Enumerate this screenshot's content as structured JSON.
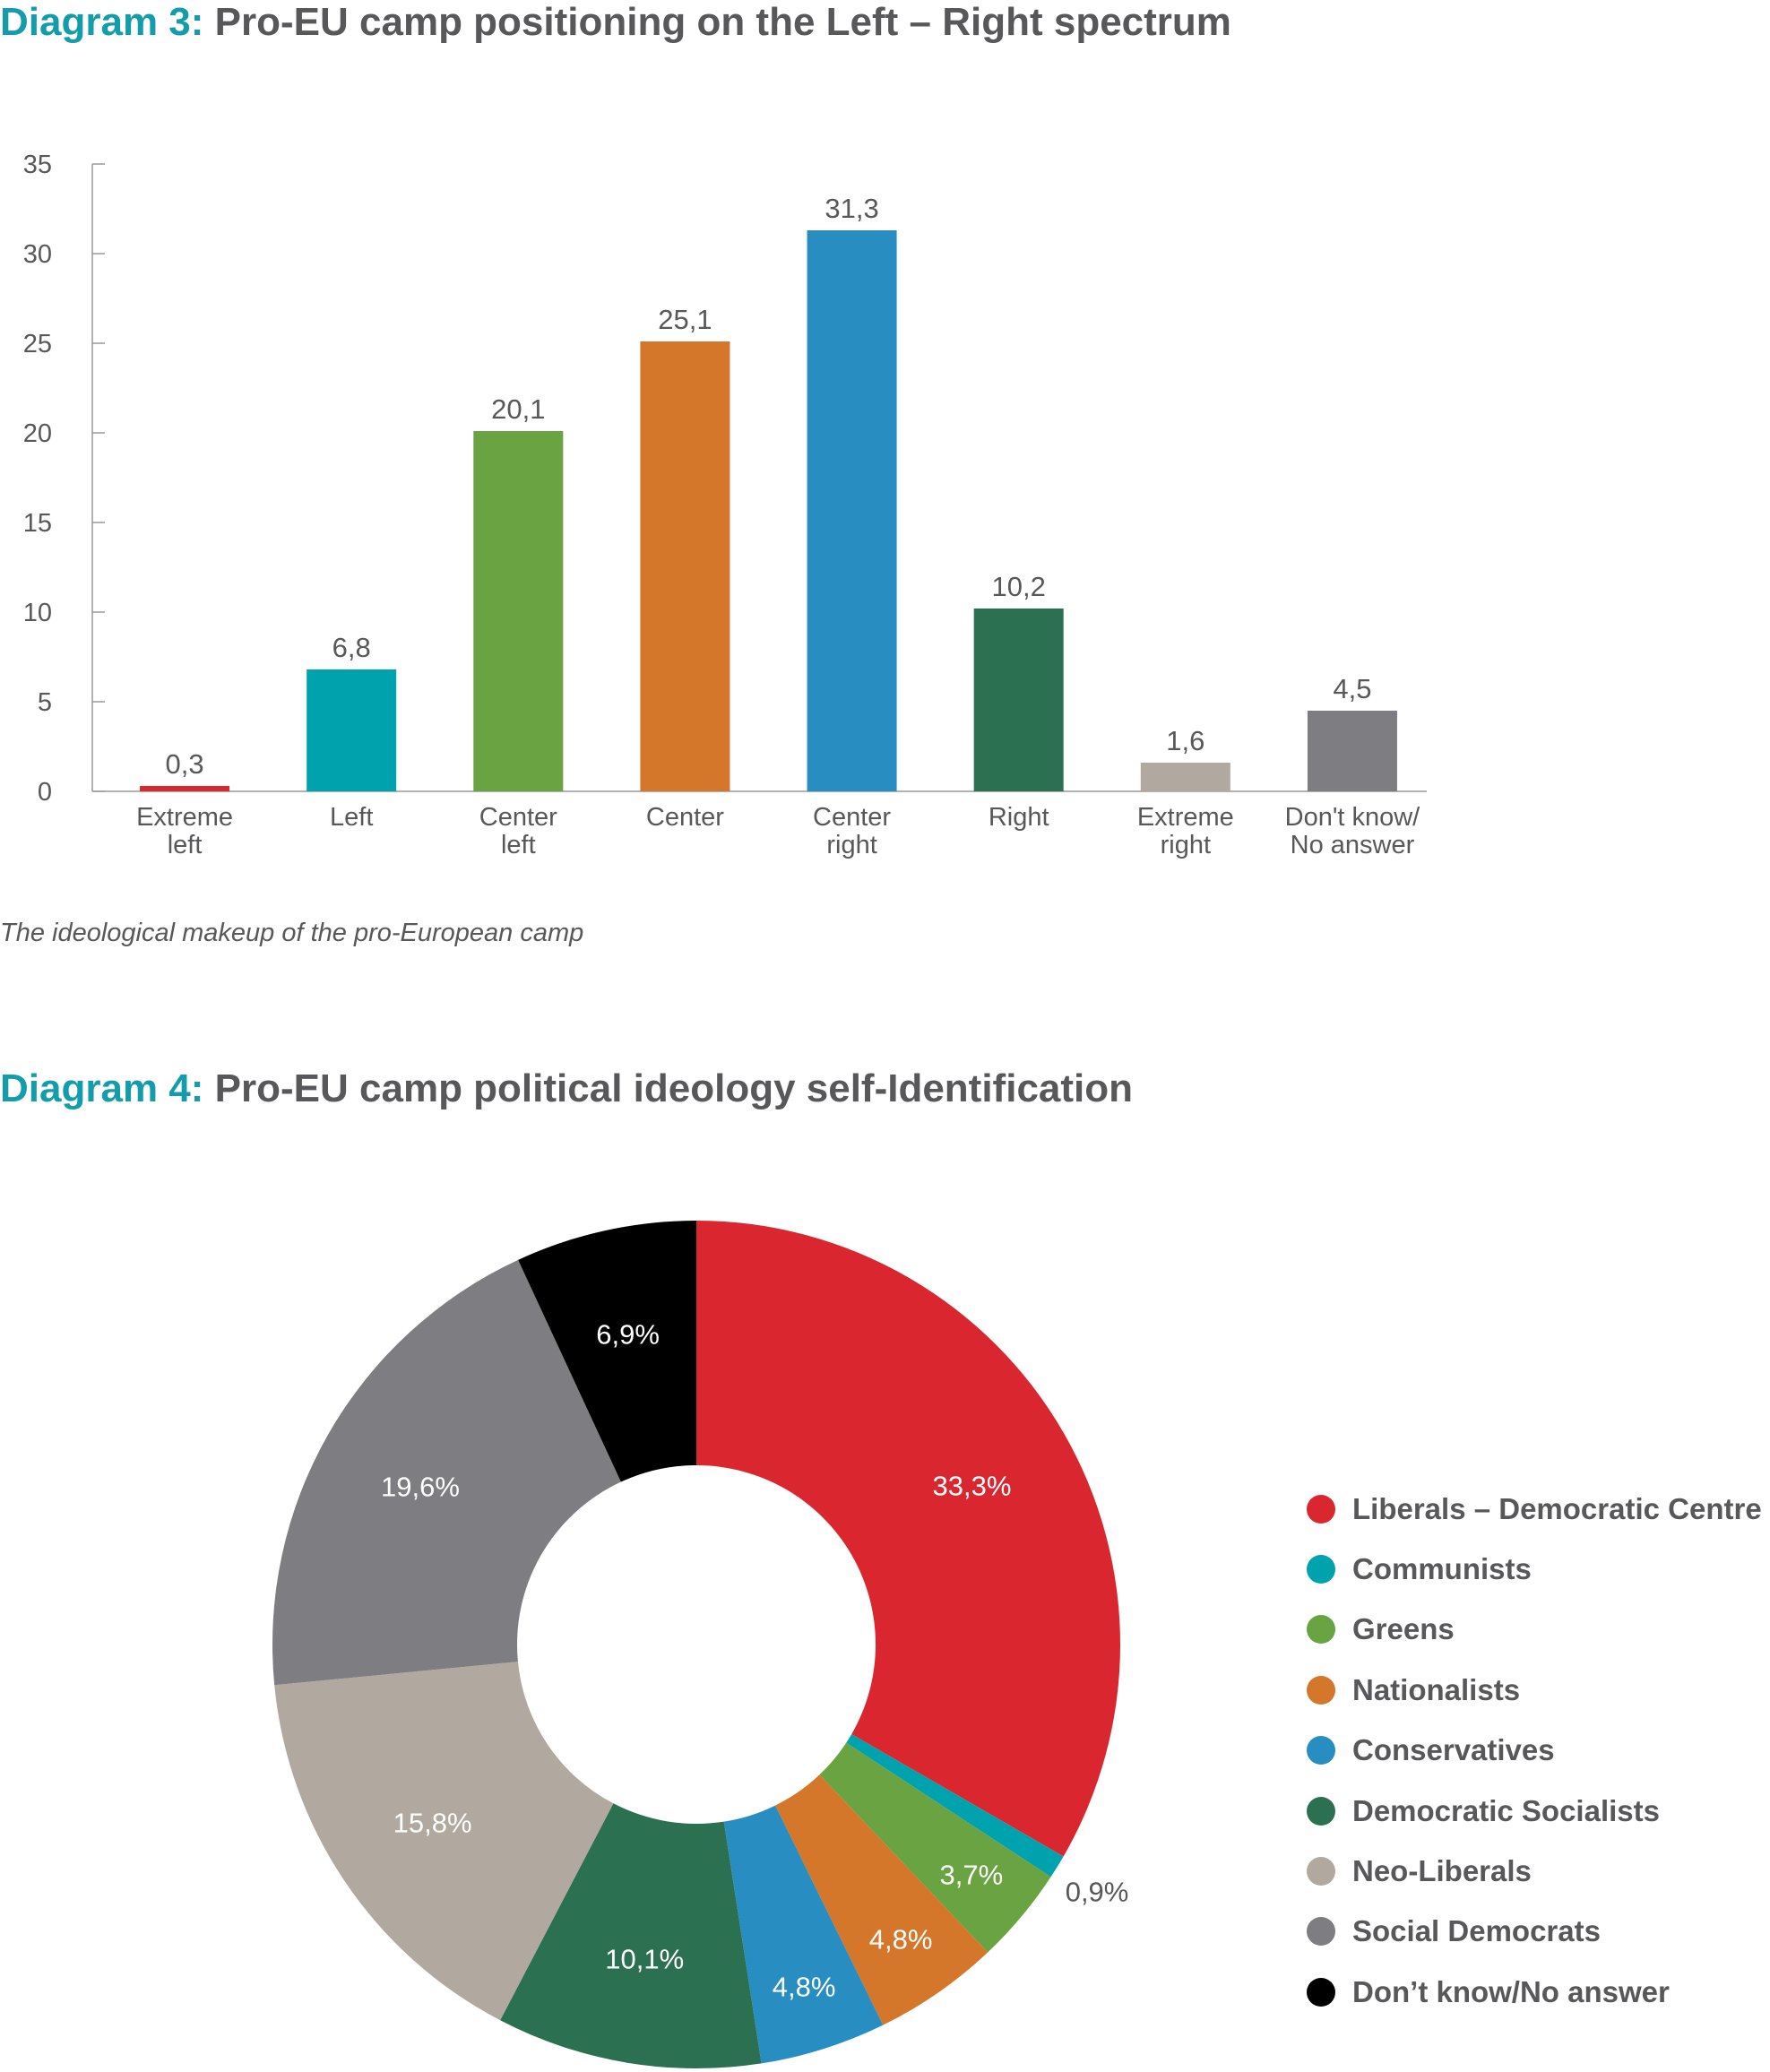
{
  "chart_data": [
    {
      "type": "bar",
      "title_prefix": "Diagram 3:",
      "title": "Pro-EU camp positioning on the Left – Right spectrum",
      "caption": "The ideological makeup of the pro-European camp",
      "categories": [
        [
          "Extreme",
          "left"
        ],
        [
          "Left"
        ],
        [
          "Center",
          "left"
        ],
        [
          "Center"
        ],
        [
          "Center",
          "right"
        ],
        [
          "Right"
        ],
        [
          "Extreme",
          "right"
        ],
        [
          "Don't know/",
          "No answer"
        ]
      ],
      "values": [
        0.3,
        6.8,
        20.1,
        25.1,
        31.3,
        10.2,
        1.6,
        4.5
      ],
      "value_labels": [
        "0,3",
        "6,8",
        "20,1",
        "25,1",
        "31,3",
        "10,2",
        "1,6",
        "4,5"
      ],
      "colors": [
        "#da262e",
        "#00a3ad",
        "#6aa341",
        "#d4772a",
        "#288dc1",
        "#2c7052",
        "#b1a89f",
        "#7e7e82"
      ],
      "yticks": [
        0,
        5,
        10,
        15,
        20,
        25,
        30,
        35
      ],
      "ylim": [
        0,
        35
      ],
      "grid": false,
      "xlabel": "",
      "ylabel": ""
    },
    {
      "type": "pie",
      "donut": true,
      "title_prefix": "Diagram 4:",
      "title": "Pro-EU camp political ideology self-Identification",
      "labels": [
        "Liberals – Democratic Centre",
        "Communists",
        "Greens",
        "Nationalists",
        "Conservatives",
        "Democratic Socialists",
        "Neo-Liberals",
        "Social Democrats",
        "Don’t know/No answer"
      ],
      "values": [
        33.3,
        0.9,
        3.7,
        4.8,
        4.8,
        10.1,
        15.8,
        19.6,
        6.9
      ],
      "value_labels": [
        "33,3%",
        "0,9%",
        "3,7%",
        "4,8%",
        "4,8%",
        "10,1%",
        "15,8%",
        "19,6%",
        "6,9%"
      ],
      "colors": [
        "#da262e",
        "#00a3ad",
        "#6aa341",
        "#d4772a",
        "#288dc1",
        "#2c7052",
        "#b1a89f",
        "#7e7e82",
        "#000000"
      ],
      "legend_placement": "right"
    }
  ]
}
